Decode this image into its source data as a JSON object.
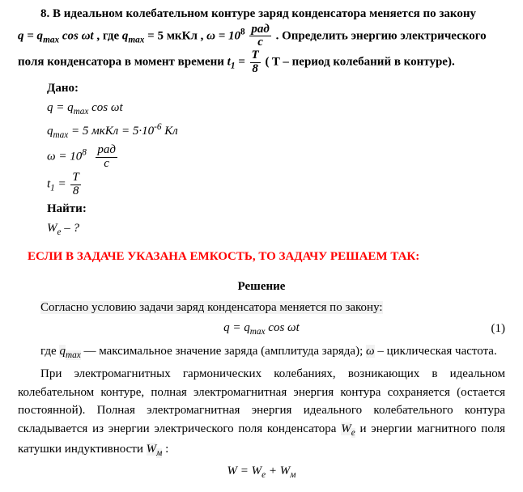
{
  "problem": {
    "number": "8.",
    "line1_prefix": "В идеальном колебательном контуре заряд конденсатора меняется по закону",
    "eq_q": "q = q",
    "eq_q_sub": "max",
    "eq_cos": " cos ωt",
    "where": ",  где  ",
    "qmax_lhs": "q",
    "qmax_sub": "max",
    "qmax_rhs": " = 5 мкКл ,  ",
    "omega_eq": "ω = 10",
    "omega_exp": "8",
    "frac_rad_num": "рад",
    "frac_rad_den": "с",
    "line1_suffix": ".  Определить  энергию  электрического",
    "line2_prefix": "поля конденсатора в момент времени  ",
    "t1_lhs": "t",
    "t1_sub": "1",
    "t1_eq": " = ",
    "T_num": "T",
    "T_den": "8",
    "line2_suffix": "  ( T  – период колебаний в контуре)."
  },
  "given": {
    "title": "Дано:",
    "row_q": "q = q",
    "row_q_sub": "max",
    "row_q_cos": " cos ωt",
    "row_qmax_a": "q",
    "row_qmax_sub": "max",
    "row_qmax_b": " = 5 мкКл = 5·10",
    "row_qmax_exp": "-6",
    "row_qmax_c": " Кл",
    "row_omega_a": "ω = 10",
    "row_omega_exp": "8",
    "row_omega_num": "рад",
    "row_omega_den": "с",
    "row_t1_a": "t",
    "row_t1_sub": "1",
    "row_t1_eq": " = ",
    "row_t1_num": "T",
    "row_t1_den": "8"
  },
  "find": {
    "title": "Найти:",
    "row": "W",
    "row_sub": "e",
    "row_after": " – ?"
  },
  "hint": "ЕСЛИ В ЗАДАЧЕ УКАЗАНА ЕМКОСТЬ, ТО ЗАДАЧУ РЕШАЕМ ТАК:",
  "solution": {
    "title": "Решение",
    "p1": "Согласно условию задачи заряд конденсатора меняется по закону:",
    "eq1_lhs": "q = q",
    "eq1_sub": "max",
    "eq1_rhs": " cos ωt",
    "eq1_num": "(1)",
    "p2a": "где  ",
    "p2_q": "q",
    "p2_sub": "max",
    "p2b": "  —  максимальное  значение  заряда  (амплитуда  заряда);  ",
    "p2c": "ω",
    "p2d": "–  циклическая частота.",
    "p3": "При  электромагнитных  гармонических  колебаниях,  возникающих  в  идеальном колебательном контуре, полная электромагнитная энергия контура сохраняется (остается постоянной).  Полная  электромагнитная  энергия  идеального  колебательного  контура складывается из энергии электрического поля конденсатора ",
    "We": "W",
    "We_sub": "e",
    "p3b": "  и энергии магнитного поля катушки индуктивности ",
    "Wm": "W",
    "Wm_sub": "м",
    "p3c": " :",
    "eq2_a": "W = W",
    "eq2_sub1": "e",
    "eq2_b": " + W",
    "eq2_sub2": "м"
  }
}
